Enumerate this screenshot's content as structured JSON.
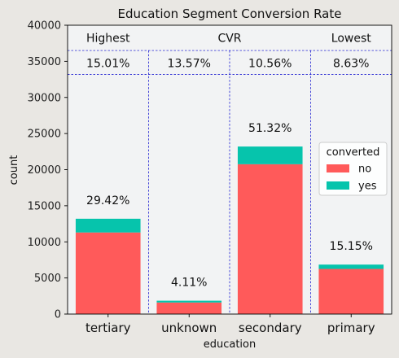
{
  "chart_data": {
    "type": "bar",
    "stacked": true,
    "title": "Education Segment Conversion Rate",
    "xlabel": "education",
    "ylabel": "count",
    "ylim": [
      0,
      40000
    ],
    "yticks": [
      0,
      5000,
      10000,
      15000,
      20000,
      25000,
      30000,
      35000,
      40000
    ],
    "categories": [
      "tertiary",
      "unknown",
      "secondary",
      "primary"
    ],
    "series": [
      {
        "name": "no",
        "values": [
          11300,
          1600,
          20750,
          6250
        ],
        "color": "#ff5a5a"
      },
      {
        "name": "yes",
        "values": [
          1900,
          250,
          2450,
          600
        ],
        "color": "#06c4ac"
      }
    ],
    "bar_labels": [
      "29.42%",
      "4.11%",
      "51.32%",
      "15.15%"
    ],
    "legend": {
      "title": "converted",
      "position": "right",
      "entries": [
        "no",
        "yes"
      ]
    },
    "table": {
      "headers": [
        "Highest",
        "CVR",
        "Lowest"
      ],
      "values": [
        "15.01%",
        "13.57%",
        "10.56%",
        "8.63%"
      ],
      "row_top": 36500,
      "row_bottom": 33200
    },
    "colors": {
      "background": "#e9e7e3",
      "plot_background": "#f2f3f4",
      "divider": "#0000cc"
    },
    "grid": false
  }
}
